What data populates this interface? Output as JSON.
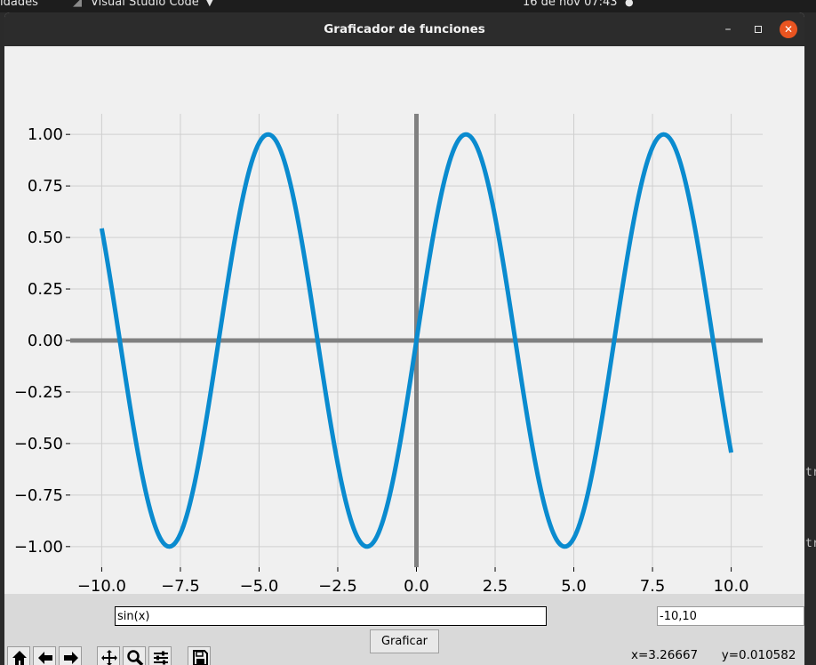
{
  "topbar": {
    "activities": "idades",
    "app_name": "Visual Studio Code",
    "clock": "16 de nov  07:43"
  },
  "background_editor": {
    "fragment_1": "tr",
    "fragment_2": "tr"
  },
  "window": {
    "title": "Graficador de funciones"
  },
  "controls": {
    "function_value": "sin(x)",
    "range_value": "-10,10",
    "plot_button_label": "Graficar"
  },
  "status": {
    "x_readout": "x=3.26667",
    "y_readout": "y=0.010582"
  },
  "toolbar_icons": [
    "home-icon",
    "back-arrow-icon",
    "forward-arrow-icon",
    "pan-icon",
    "zoom-icon",
    "configure-subplots-icon",
    "save-icon"
  ],
  "colors": {
    "curve": "#0a8bcf",
    "axes": "#808080",
    "grid": "#cfcfcf",
    "close_button": "#e95420"
  },
  "chart_data": {
    "type": "line",
    "function": "sin(x)",
    "x_range": [
      -10,
      10
    ],
    "xlim": [
      -11,
      11
    ],
    "ylim": [
      -1.1,
      1.1
    ],
    "x_ticks": [
      -10,
      -7.5,
      -5,
      -2.5,
      0,
      2.5,
      5,
      7.5,
      10
    ],
    "x_tick_labels": [
      "−10.0",
      "−7.5",
      "−5.0",
      "−2.5",
      "0.0",
      "2.5",
      "5.0",
      "7.5",
      "10.0"
    ],
    "y_ticks": [
      1,
      0.75,
      0.5,
      0.25,
      0,
      -0.25,
      -0.5,
      -0.75,
      -1
    ],
    "y_tick_labels": [
      "1.00",
      "0.75",
      "0.50",
      "0.25",
      "0.00",
      "−0.25",
      "−0.50",
      "−0.75",
      "−1.00"
    ],
    "grid": true,
    "series": [
      {
        "x": [
          -10,
          -9.5,
          -9,
          -8.5,
          -8,
          -7.5,
          -7,
          -6.5,
          -6,
          -5.5,
          -5,
          -4.5,
          -4,
          -3.5,
          -3,
          -2.5,
          -2,
          -1.5,
          -1,
          -0.5,
          0,
          0.5,
          1,
          1.5,
          2,
          2.5,
          3,
          3.5,
          4,
          4.5,
          5,
          5.5,
          6,
          6.5,
          7,
          7.5,
          8,
          8.5,
          9,
          9.5,
          10
        ],
        "y": [
          0.544,
          0.075,
          -0.412,
          -0.798,
          -0.989,
          -0.938,
          -0.657,
          -0.215,
          0.279,
          0.706,
          0.959,
          0.978,
          0.757,
          0.351,
          -0.141,
          -0.598,
          -0.909,
          -0.997,
          -0.841,
          -0.479,
          0,
          0.479,
          0.841,
          0.997,
          0.909,
          0.598,
          0.141,
          -0.351,
          -0.757,
          -0.978,
          -0.959,
          -0.706,
          -0.279,
          0.215,
          0.657,
          0.938,
          0.989,
          0.798,
          0.412,
          -0.075,
          -0.544
        ]
      }
    ]
  }
}
